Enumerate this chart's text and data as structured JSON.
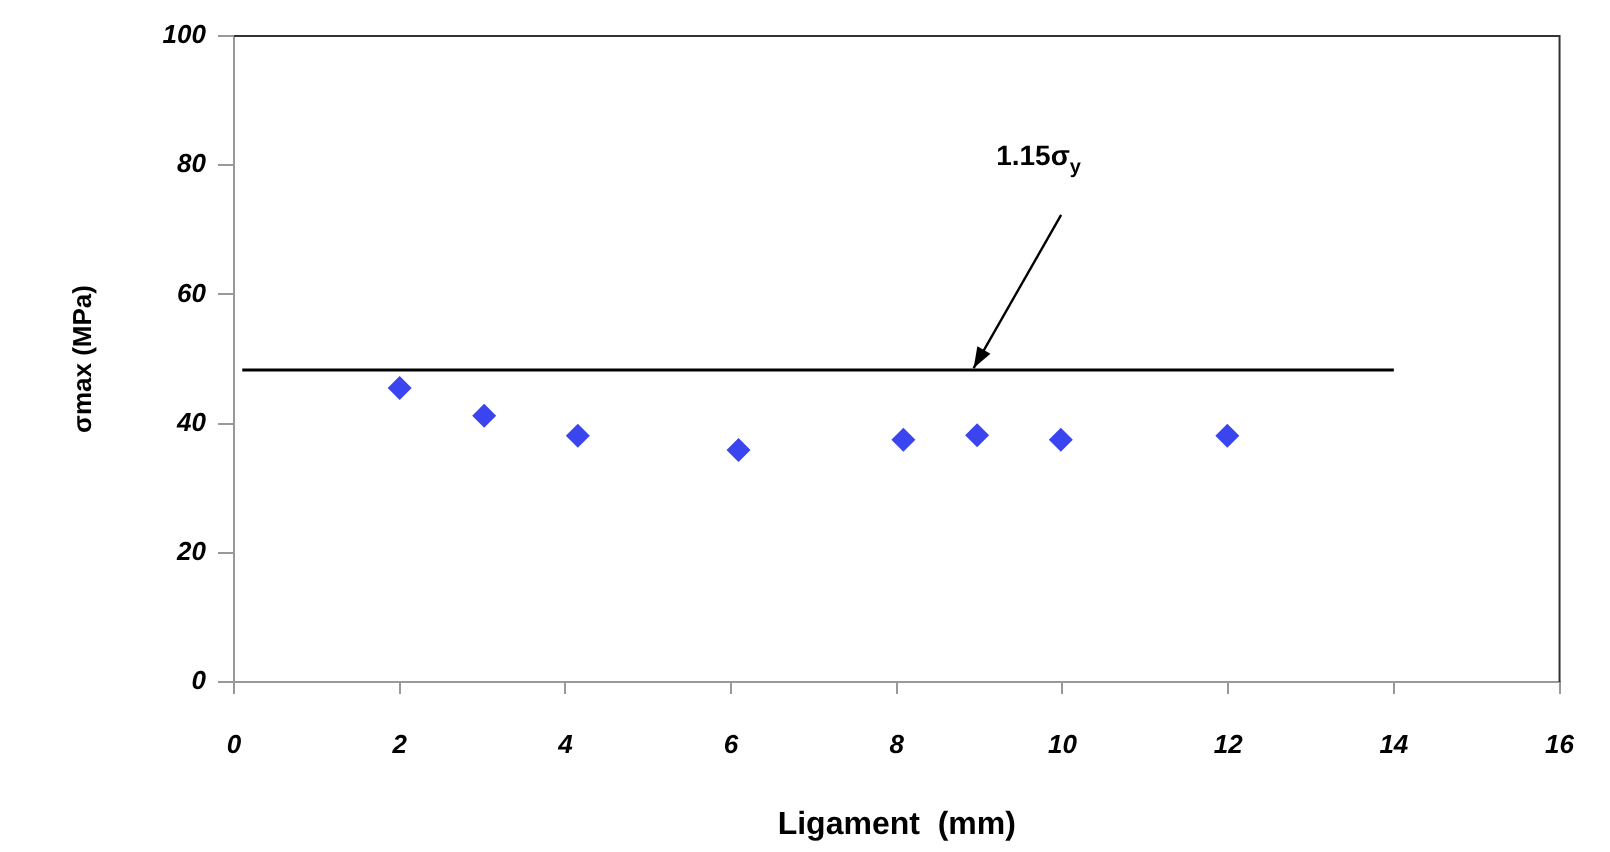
{
  "chart_data": {
    "type": "scatter",
    "xlabel": "Ligament  (mm)",
    "ylabel": "σmax (MPa)",
    "xlim": [
      0,
      16
    ],
    "xticks": [
      0,
      2,
      4,
      6,
      8,
      10,
      12,
      14,
      16
    ],
    "ylim": [
      0,
      100
    ],
    "yticks": [
      0,
      20,
      40,
      60,
      80,
      100
    ],
    "grid": false,
    "legend": false,
    "series": [
      {
        "color": "#3a45f0",
        "marker": "diamond",
        "x": [
          2,
          3.02,
          4.15,
          6.09,
          8.08,
          8.97,
          9.98,
          11.99
        ],
        "values": [
          45.5,
          41.2,
          38.1,
          35.9,
          37.5,
          38.2,
          37.5,
          38.1
        ]
      },
      {
        "type": "line",
        "color": "#000000",
        "marker": "none",
        "x": [
          0.1,
          14
        ],
        "values": [
          48.3,
          48.3
        ]
      }
    ],
    "annotations": [
      "1.15σ$_{y}$"
    ]
  }
}
